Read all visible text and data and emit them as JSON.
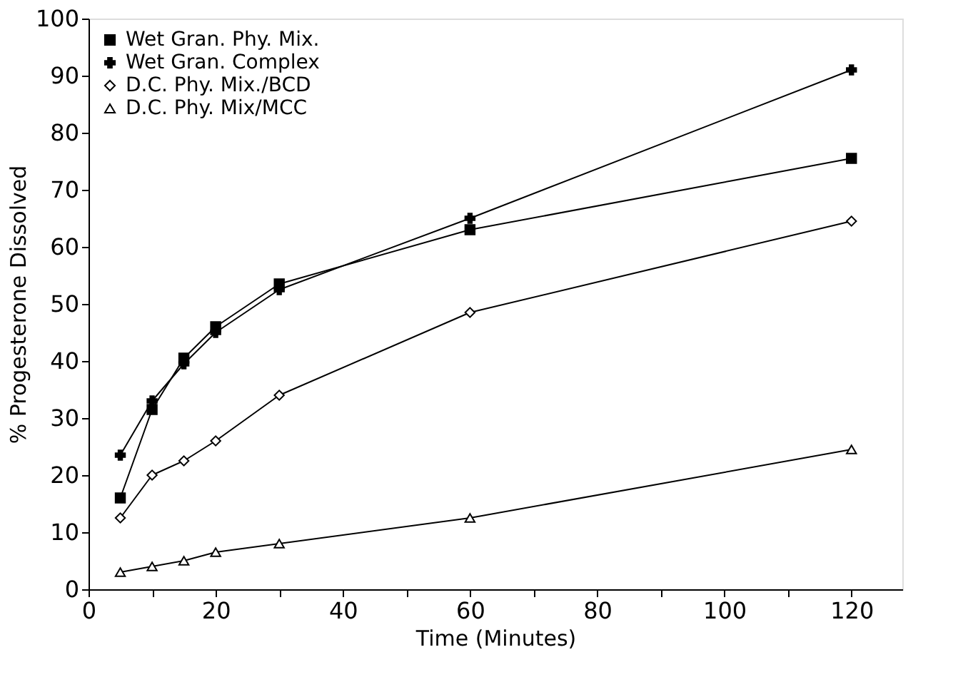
{
  "chart_data": {
    "type": "line",
    "xlabel": "Time (Minutes)",
    "ylabel": "% Progesterone Dissolved",
    "x": [
      5,
      10,
      15,
      20,
      30,
      60,
      120
    ],
    "series": [
      {
        "name": "Wet Gran. Phy. Mix.",
        "color": "#000000",
        "marker": "square",
        "values": [
          16,
          31.5,
          40.5,
          46,
          53.5,
          63,
          75.5
        ]
      },
      {
        "name": "Wet Gran. Complex",
        "color": "#000000",
        "marker": "cross",
        "values": [
          23.5,
          33,
          39.5,
          45,
          52.5,
          65,
          91
        ]
      },
      {
        "name": "D.C. Phy. Mix./BCD",
        "color": "#000000",
        "marker": "diamond",
        "values": [
          12.5,
          20,
          22.5,
          26,
          34,
          48.5,
          64.5
        ]
      },
      {
        "name": "D.C. Phy. Mix/MCC",
        "color": "#000000",
        "marker": "triangle",
        "values": [
          3,
          4,
          5,
          6.5,
          8,
          12.5,
          24.5
        ]
      }
    ],
    "xlim": [
      0,
      128
    ],
    "xticks": [
      0,
      {
        "value": 10,
        "label": null
      },
      20,
      {
        "value": 30,
        "label": null
      },
      40,
      {
        "value": 50,
        "label": null
      },
      60,
      {
        "value": 70,
        "label": null
      },
      80,
      {
        "value": 90,
        "label": null
      },
      100,
      {
        "value": 110,
        "label": null
      },
      120
    ],
    "ylim": [
      0,
      100
    ],
    "yticks": [
      0,
      10,
      20,
      30,
      40,
      50,
      60,
      70,
      80,
      90,
      100
    ],
    "grid": false,
    "legend": "top left",
    "line_style": "solid"
  }
}
